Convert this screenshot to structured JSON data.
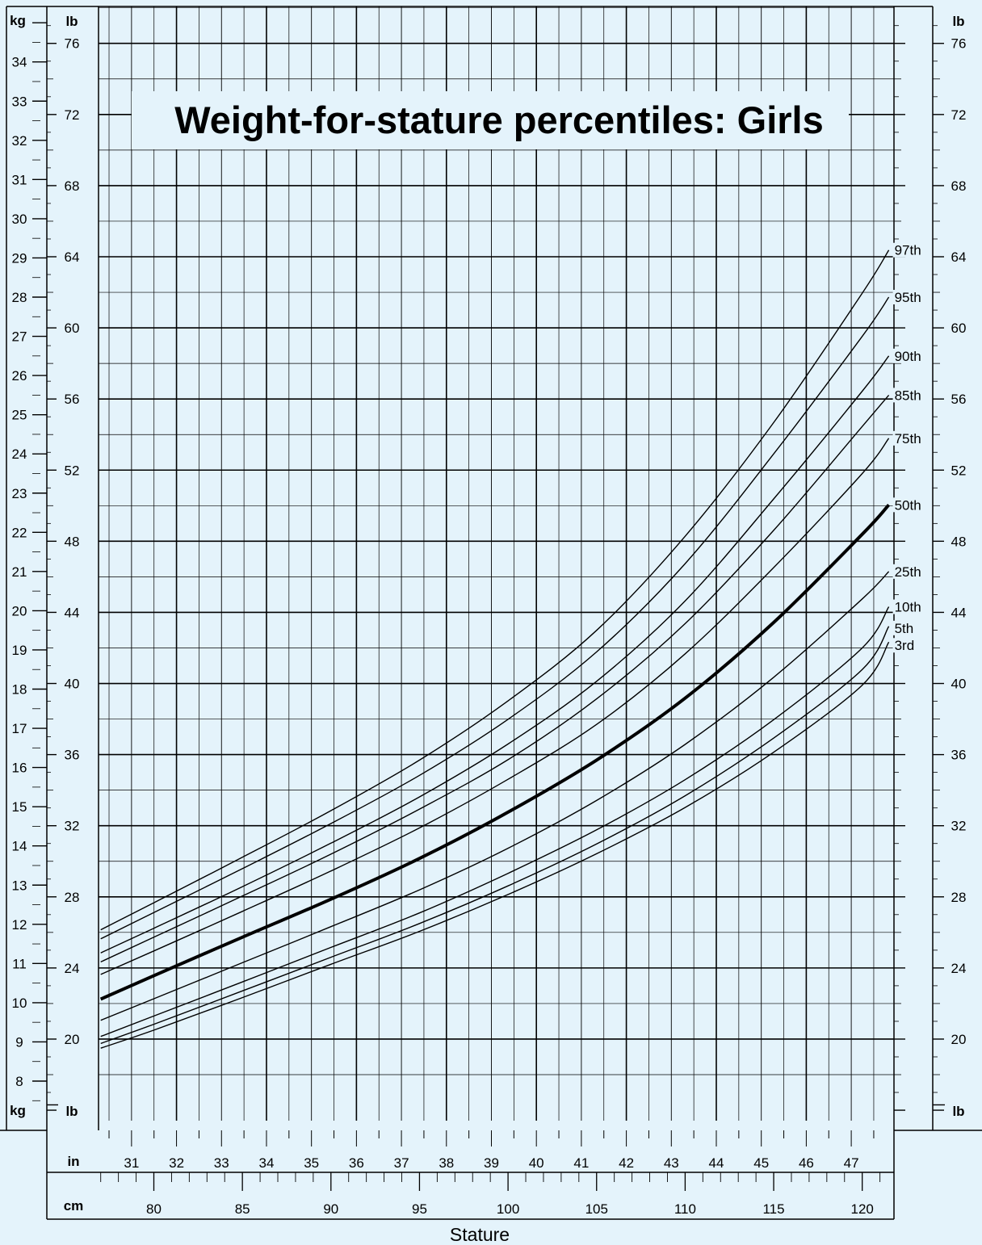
{
  "chart_data": {
    "type": "line",
    "title": "Weight-for-stature percentiles: Girls",
    "xlabel": "Stature",
    "units": {
      "kg": "kg",
      "lb": "lb",
      "in": "in",
      "cm": "cm"
    },
    "x_unit": "cm",
    "y_unit": "kg",
    "xlim": [
      77,
      121.5
    ],
    "ylim": [
      7.5,
      35
    ],
    "kg_ticks": [
      8,
      9,
      10,
      11,
      12,
      13,
      14,
      15,
      16,
      17,
      18,
      19,
      20,
      21,
      22,
      23,
      24,
      25,
      26,
      27,
      28,
      29,
      30,
      31,
      32,
      33,
      34
    ],
    "lb_ticks": [
      20,
      24,
      28,
      32,
      36,
      40,
      44,
      48,
      52,
      56,
      60,
      64,
      68,
      72,
      76
    ],
    "in_ticks": [
      31,
      32,
      33,
      34,
      35,
      36,
      37,
      38,
      39,
      40,
      41,
      42,
      43,
      44,
      45,
      46,
      47
    ],
    "cm_ticks": [
      80,
      85,
      90,
      95,
      100,
      105,
      110,
      115,
      120
    ],
    "x": [
      77,
      80,
      85,
      90,
      95,
      100,
      105,
      110,
      115,
      120,
      121.5
    ],
    "series": [
      {
        "name": "97th",
        "values": [
          11.86,
          12.55,
          13.71,
          14.9,
          16.19,
          17.7,
          19.5,
          21.9,
          24.8,
          28.1,
          29.2
        ]
      },
      {
        "name": "95th",
        "values": [
          11.63,
          12.3,
          13.42,
          14.57,
          15.8,
          17.23,
          18.95,
          21.2,
          24.0,
          27.0,
          28.0
        ]
      },
      {
        "name": "90th",
        "values": [
          11.27,
          11.9,
          12.96,
          14.07,
          15.25,
          16.6,
          18.2,
          20.25,
          22.85,
          25.6,
          26.5
        ]
      },
      {
        "name": "85th",
        "values": [
          11.04,
          11.67,
          12.72,
          13.79,
          14.94,
          16.2,
          17.75,
          19.67,
          22.05,
          24.7,
          25.5
        ]
      },
      {
        "name": "75th",
        "values": [
          10.72,
          11.32,
          12.33,
          13.36,
          14.46,
          15.7,
          17.1,
          18.9,
          21.1,
          23.5,
          24.4
        ]
      },
      {
        "name": "50th",
        "values": [
          10.09,
          10.69,
          11.67,
          12.64,
          13.68,
          14.86,
          16.19,
          17.77,
          19.7,
          21.95,
          22.7
        ]
      },
      {
        "name": "25th",
        "values": [
          9.55,
          10.1,
          11.02,
          11.94,
          12.88,
          13.94,
          15.16,
          16.59,
          18.3,
          20.3,
          21.0
        ]
      },
      {
        "name": "10th",
        "values": [
          9.14,
          9.66,
          10.53,
          11.41,
          12.29,
          13.3,
          14.41,
          15.69,
          17.22,
          19.05,
          20.1
        ]
      },
      {
        "name": "5th",
        "values": [
          8.96,
          9.45,
          10.3,
          11.16,
          12.02,
          12.98,
          14.05,
          15.28,
          16.75,
          18.5,
          19.6
        ]
      },
      {
        "name": "3rd",
        "values": [
          8.84,
          9.3,
          10.13,
          10.98,
          11.82,
          12.76,
          13.8,
          14.98,
          16.39,
          18.1,
          19.2
        ]
      }
    ],
    "colors": {
      "background": "#e4f3fb",
      "line": "#000000"
    },
    "grid": true
  }
}
